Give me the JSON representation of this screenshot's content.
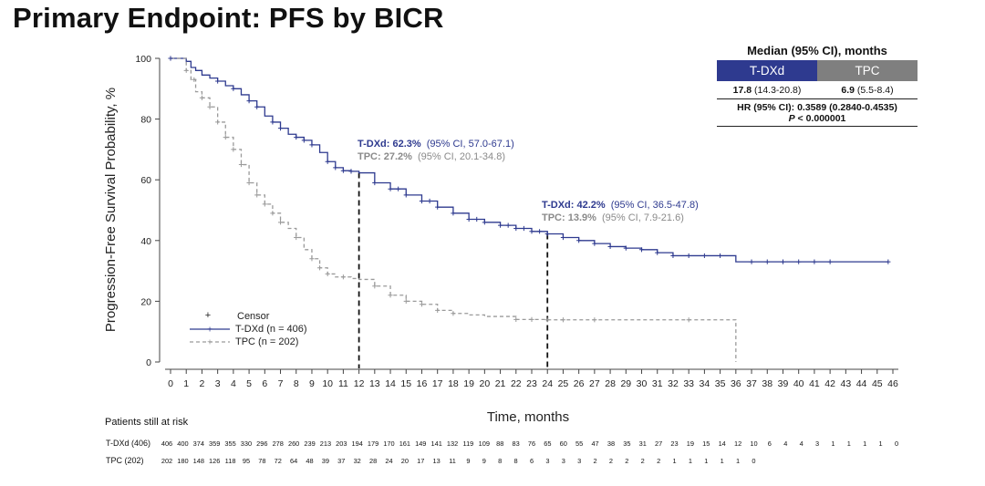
{
  "page_title": "Primary Endpoint: PFS by BICR",
  "median_table": {
    "title": "Median (95% CI), months",
    "arms": [
      {
        "name": "T-DXd",
        "color": "#2e3a8f",
        "median": "17.8",
        "ci": "(14.3-20.8)"
      },
      {
        "name": "TPC",
        "color": "#7f7f7f",
        "median": "6.9",
        "ci": "(5.5-8.4)"
      }
    ],
    "hr_text": "HR (95% CI): 0.3589 (0.2840-0.4535)",
    "p_label": "P",
    "p_value": "< 0.000001"
  },
  "annotations": {
    "m12": {
      "tdxd_label": "T-DXd: 62.3%",
      "tdxd_ci": "(95% CI, 57.0-67.1)",
      "tpc_label": "TPC: 27.2%",
      "tpc_ci": "(95% CI, 20.1-34.8)"
    },
    "m24": {
      "tdxd_label": "T-DXd: 42.2%",
      "tdxd_ci": "(95% CI, 36.5-47.8)",
      "tpc_label": "TPC: 13.9%",
      "tpc_ci": "(95% CI, 7.9-21.6)"
    }
  },
  "legend": {
    "censor": "Censor",
    "tdxd": "T-DXd (n = 406)",
    "tpc": "TPC (n = 202)"
  },
  "risk_table": {
    "title": "Patients still at risk",
    "rows": [
      {
        "label": "T-DXd (406)",
        "values": [
          "406",
          "400",
          "374",
          "359",
          "355",
          "330",
          "296",
          "278",
          "260",
          "239",
          "213",
          "203",
          "194",
          "179",
          "170",
          "161",
          "149",
          "141",
          "132",
          "119",
          "109",
          "88",
          "83",
          "76",
          "65",
          "60",
          "55",
          "47",
          "38",
          "35",
          "31",
          "27",
          "23",
          "19",
          "15",
          "14",
          "12",
          "10",
          "6",
          "4",
          "4",
          "3",
          "1",
          "1",
          "1",
          "1",
          "0"
        ]
      },
      {
        "label": "TPC (202)",
        "values": [
          "202",
          "180",
          "148",
          "126",
          "118",
          "95",
          "78",
          "72",
          "64",
          "48",
          "39",
          "37",
          "32",
          "28",
          "24",
          "20",
          "17",
          "13",
          "11",
          "9",
          "9",
          "8",
          "8",
          "6",
          "3",
          "3",
          "3",
          "2",
          "2",
          "2",
          "2",
          "2",
          "1",
          "1",
          "1",
          "1",
          "1",
          "0"
        ]
      }
    ]
  },
  "chart_data": {
    "type": "line",
    "title": "Primary Endpoint: PFS by BICR",
    "xlabel": "Time, months",
    "ylabel": "Progression-Free Survival Probability, %",
    "xlim": [
      0,
      46
    ],
    "ylim": [
      0,
      100
    ],
    "x_ticks": [
      0,
      1,
      2,
      3,
      4,
      5,
      6,
      7,
      8,
      9,
      10,
      11,
      12,
      13,
      14,
      15,
      16,
      17,
      18,
      19,
      20,
      21,
      22,
      23,
      24,
      25,
      26,
      27,
      28,
      29,
      30,
      31,
      32,
      33,
      34,
      35,
      36,
      37,
      38,
      39,
      40,
      41,
      42,
      43,
      44,
      45,
      46
    ],
    "y_ticks": [
      0,
      20,
      40,
      60,
      80,
      100
    ],
    "reference_lines_x": [
      12,
      24
    ],
    "series": [
      {
        "name": "T-DXd",
        "color": "#2e3a8f",
        "style": "solid",
        "x": [
          0,
          0.5,
          1,
          1.3,
          1.6,
          2,
          2.5,
          3,
          3.5,
          4,
          4.5,
          5,
          5.5,
          6,
          6.5,
          7,
          7.5,
          8,
          8.5,
          9,
          9.5,
          10,
          10.5,
          11,
          11.5,
          12,
          13,
          14,
          15,
          16,
          17,
          18,
          19,
          20,
          21,
          22,
          23,
          24,
          25,
          26,
          27,
          28,
          29,
          30,
          31,
          32,
          33,
          34,
          35,
          36,
          37,
          38,
          39,
          40,
          41,
          42,
          43,
          44,
          45,
          45.7
        ],
        "y": [
          100,
          100,
          99,
          97,
          96,
          94.5,
          93.5,
          92.5,
          91,
          90,
          88,
          86,
          84,
          81,
          79,
          77,
          75,
          74,
          73,
          71.5,
          69,
          66,
          64,
          63,
          62.8,
          62.3,
          59,
          57,
          55,
          53,
          51,
          49,
          47,
          46,
          45,
          44,
          43,
          42.2,
          41,
          40,
          39,
          38,
          37.5,
          37,
          36,
          35,
          35,
          35,
          35,
          33,
          33,
          33,
          33,
          33,
          33,
          33,
          33,
          33,
          33,
          33
        ],
        "censor_x": [
          0,
          3,
          4,
          5,
          5.5,
          6.5,
          7,
          8,
          8.5,
          9,
          10,
          10.5,
          11,
          11.5,
          13,
          14,
          14.5,
          15,
          16,
          16.5,
          17,
          18,
          19,
          19.5,
          20,
          21,
          21.5,
          22,
          22.5,
          23,
          23.5,
          24,
          25,
          26,
          27,
          28,
          29,
          30,
          31,
          32,
          33,
          34,
          35,
          37,
          38,
          39,
          40,
          41,
          42,
          45.7
        ]
      },
      {
        "name": "TPC",
        "color": "#9a9a9a",
        "style": "dashed",
        "x": [
          0,
          1,
          1.3,
          1.6,
          2,
          2.5,
          3,
          3.5,
          4,
          4.5,
          5,
          5.5,
          6,
          6.5,
          7,
          7.5,
          8,
          8.5,
          9,
          9.5,
          10,
          10.5,
          11,
          11.5,
          12,
          13,
          14,
          15,
          16,
          17,
          18,
          19,
          20,
          21,
          22,
          23,
          24,
          25,
          30,
          36,
          36
        ],
        "y": [
          100,
          96,
          93,
          89,
          87,
          84,
          79,
          74,
          70,
          65,
          59,
          55,
          52,
          49,
          46,
          44,
          41,
          37,
          34,
          31,
          29,
          28,
          28,
          27.5,
          27.2,
          25,
          22,
          20,
          19,
          17,
          16,
          15.5,
          15,
          15,
          14,
          14,
          13.9,
          13.9,
          13.9,
          13.9,
          0
        ],
        "censor_x": [
          1,
          1.5,
          2,
          2.5,
          3,
          3.5,
          4,
          4.5,
          5,
          5.5,
          6,
          6.5,
          7,
          8,
          9,
          9.5,
          10,
          11,
          13,
          14,
          15,
          16,
          17,
          18,
          22,
          23,
          24,
          25,
          27,
          33
        ]
      }
    ],
    "legend_position": "bottom-left"
  }
}
